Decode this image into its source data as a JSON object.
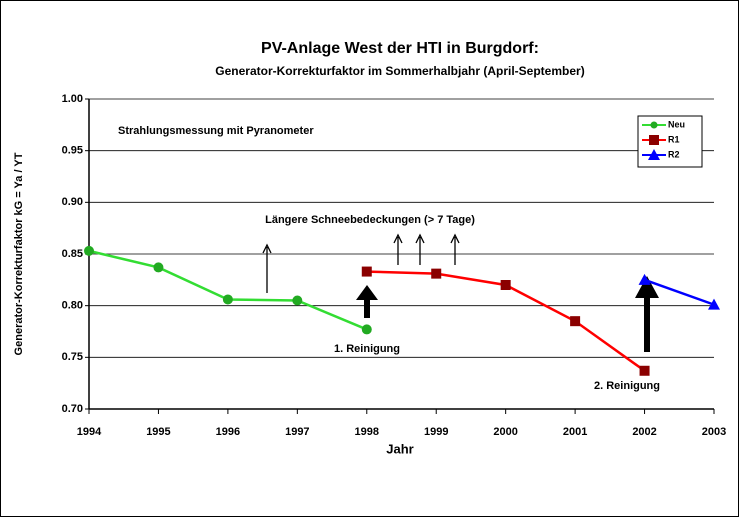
{
  "chart_data": {
    "type": "line",
    "title": "PV-Anlage West der HTI in Burgdorf:",
    "subtitle": "Generator-Korrekturfaktor im Sommerhalbjahr (April-September)",
    "x_label": "Jahr",
    "y_label": "Generator-Korrekturfaktor kG = Ya / YT",
    "annotations": [
      "Strahlungsmessung mit Pyranometer",
      "Längere Schneebedeckungen (> 7 Tage)",
      "1. Reinigung",
      "2. Reinigung"
    ],
    "xlim": [
      1994,
      2003
    ],
    "xticks": [
      1994,
      1995,
      1996,
      1997,
      1998,
      1999,
      2000,
      2001,
      2002,
      2003
    ],
    "ylim": [
      0.7,
      1.0
    ],
    "yticks": [
      {
        "value": 0.7,
        "label": "0.70"
      },
      0.75,
      {
        "value": 0.8,
        "label": "0.80"
      },
      0.85,
      {
        "value": 0.9,
        "label": "0.90"
      },
      0.95,
      {
        "value": 1.0,
        "label": "1.00"
      }
    ],
    "grid": true,
    "legend": "upper right",
    "series": [
      {
        "name": "Neu",
        "color": "#33dd33",
        "marker_color": "#22aa22",
        "marker": "circle",
        "x": [
          1994,
          1995,
          1996,
          1997,
          1998
        ],
        "values": [
          0.853,
          0.837,
          0.806,
          0.805,
          0.777
        ]
      },
      {
        "name": "R1",
        "color": "#ff0000",
        "marker_color": "#8b0000",
        "marker": "square",
        "x": [
          1998,
          1999,
          2000,
          2001,
          2002
        ],
        "values": [
          0.833,
          0.831,
          0.82,
          0.785,
          0.737
        ]
      },
      {
        "name": "R2",
        "color": "#0000ff",
        "marker_color": "#0000ff",
        "marker": "triangle",
        "x": [
          2002,
          2003
        ],
        "values": [
          0.825,
          0.801
        ]
      }
    ]
  }
}
